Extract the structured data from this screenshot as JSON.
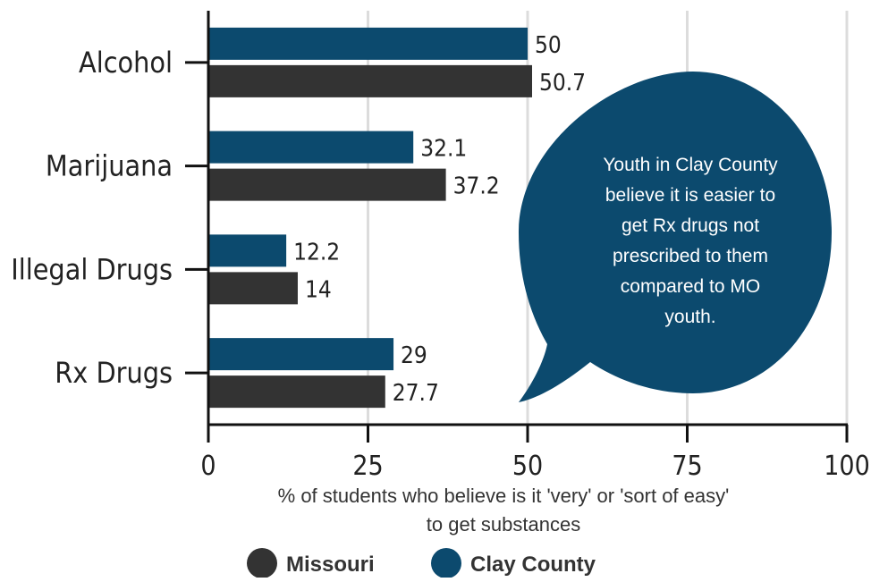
{
  "chart_data": {
    "type": "bar",
    "orientation": "horizontal",
    "categories": [
      "Alcohol",
      "Marijuana",
      "Illegal Drugs",
      "Rx Drugs"
    ],
    "series": [
      {
        "name": "Clay County",
        "values": [
          50,
          32.1,
          12.2,
          29
        ],
        "color": "#0c4a6e"
      },
      {
        "name": "Missouri",
        "values": [
          50.7,
          37.2,
          14,
          27.7
        ],
        "color": "#333333"
      }
    ],
    "value_labels": {
      "Clay County": [
        "50",
        "32.1",
        "12.2",
        "29"
      ],
      "Missouri": [
        "50.7",
        "37.2",
        "14",
        "27.7"
      ]
    },
    "xlim": [
      0,
      100
    ],
    "xticks": [
      "0",
      "25",
      "50",
      "75",
      "100"
    ],
    "xlabel_lines": [
      "% of students who believe is it 'very' or 'sort of easy'",
      "to get substances"
    ],
    "grid": "vertical",
    "legend": {
      "placement": "bottom",
      "items": [
        "Missouri",
        "Clay County"
      ]
    },
    "annotation": {
      "shape": "speech-bubble",
      "color": "#0c4a6e",
      "lines": [
        "Youth in Clay County",
        "believe it is easier to",
        "get Rx drugs not",
        "prescribed to them",
        "compared to MO",
        "youth."
      ]
    }
  }
}
